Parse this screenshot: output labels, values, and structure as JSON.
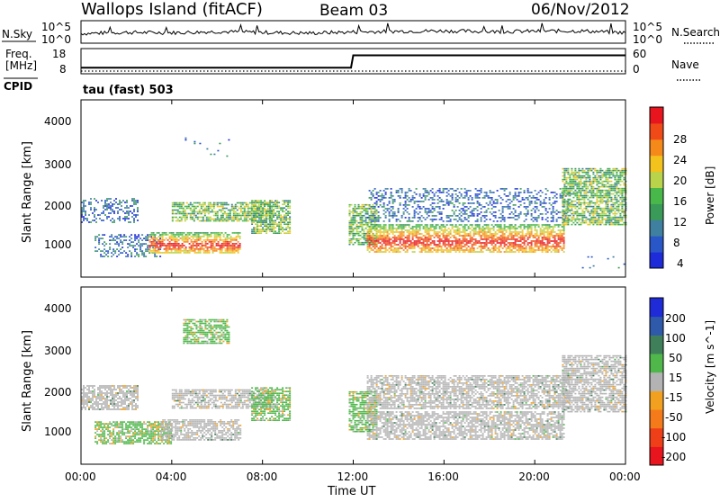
{
  "header": {
    "station": "Wallops Island (fitACF)",
    "beam": "Beam 03",
    "date": "06/Nov/2012"
  },
  "noise_panel": {
    "left_label": "N.Sky",
    "right_label": "N.Search",
    "left_ticks": [
      "10^5",
      "10^0"
    ],
    "right_ticks": [
      "10^5",
      "10^0"
    ]
  },
  "freq_panel": {
    "left_label_line1": "Freq.",
    "left_label_line2": "[MHz]",
    "right_label": "Nave",
    "left_ticks": [
      "18",
      "8"
    ],
    "right_ticks": [
      "60",
      "0"
    ],
    "cpid_label": "CPID",
    "cpid_text": "tau (fast) 503"
  },
  "chart_data": [
    {
      "type": "line",
      "title": "N.Sky",
      "description_series": [
        {
          "name": "N.Sky",
          "x": [
            0,
            2,
            4,
            6,
            8,
            10,
            12,
            14,
            16,
            18,
            20,
            22,
            24
          ],
          "values": [
            2.3,
            2.6,
            2.5,
            2.8,
            2.6,
            2.4,
            2.7,
            2.9,
            3.0,
            2.8,
            2.9,
            3.0,
            2.5
          ]
        }
      ]
    },
    {
      "type": "line",
      "title": "Freq.",
      "x": [
        0,
        11.9,
        12.0,
        24
      ],
      "series": [
        {
          "name": "Freq.",
          "values": [
            10.2,
            10.2,
            15.5,
            15.5
          ]
        },
        {
          "name": "Nave",
          "values": [
            2,
            2,
            2,
            2
          ]
        }
      ],
      "ylim": [
        8,
        18
      ]
    },
    {
      "type": "heatmap",
      "xlabel": "",
      "ylabel": "Slant Range [km]",
      "yticks": [
        "1000",
        "2000",
        "3000",
        "4000"
      ],
      "xlim": [
        0,
        24
      ],
      "ylim": [
        180,
        4600
      ],
      "colorbar": {
        "label": "Power [dB]",
        "ticks": [
          "4",
          "8",
          "12",
          "16",
          "20",
          "24",
          "28"
        ]
      },
      "bands": [
        {
          "t0": 0.0,
          "t1": 2.5,
          "r0": 1550,
          "r1": 2150,
          "level": "weak"
        },
        {
          "t0": 0.6,
          "t1": 3.5,
          "r0": 700,
          "r1": 1250,
          "level": "weak"
        },
        {
          "t0": 3.0,
          "t1": 7.0,
          "r0": 800,
          "r1": 1300,
          "level": "strong"
        },
        {
          "t0": 4.0,
          "t1": 8.5,
          "r0": 1600,
          "r1": 2050,
          "level": "medium"
        },
        {
          "t0": 7.5,
          "t1": 9.2,
          "r0": 1250,
          "r1": 2100,
          "level": "medium"
        },
        {
          "t0": 11.8,
          "t1": 13.0,
          "r0": 1000,
          "r1": 2000,
          "level": "medium"
        },
        {
          "t0": 12.6,
          "t1": 21.3,
          "r0": 800,
          "r1": 1500,
          "level": "strong"
        },
        {
          "t0": 12.6,
          "t1": 21.5,
          "r0": 1550,
          "r1": 2400,
          "level": "weak"
        },
        {
          "t0": 21.2,
          "t1": 24.0,
          "r0": 1500,
          "r1": 2900,
          "level": "medium"
        },
        {
          "t0": 4.5,
          "t1": 6.5,
          "r0": 3200,
          "r1": 3800,
          "level": "sparse"
        },
        {
          "t0": 22.0,
          "t1": 24.0,
          "r0": 300,
          "r1": 700,
          "level": "sparse"
        }
      ]
    },
    {
      "type": "heatmap",
      "xlabel": "Time UT",
      "ylabel": "Slant Range [km]",
      "yticks": [
        "1000",
        "2000",
        "3000",
        "4000"
      ],
      "xticks": [
        "00:00",
        "04:00",
        "08:00",
        "12:00",
        "16:00",
        "20:00",
        "00:00"
      ],
      "xlim": [
        0,
        24
      ],
      "ylim": [
        180,
        4600
      ],
      "colorbar": {
        "label": "Velocity [m s^-1]",
        "ticks": [
          "200",
          "100",
          "50",
          "15",
          "-15",
          "-50",
          "-100",
          "-200"
        ]
      },
      "bands": [
        {
          "t0": 0.0,
          "t1": 2.5,
          "r0": 1550,
          "r1": 2150,
          "level": "ground"
        },
        {
          "t0": 0.6,
          "t1": 4.0,
          "r0": 700,
          "r1": 1250,
          "level": "positive"
        },
        {
          "t0": 3.5,
          "t1": 7.0,
          "r0": 800,
          "r1": 1300,
          "level": "ground"
        },
        {
          "t0": 4.0,
          "t1": 8.5,
          "r0": 1600,
          "r1": 2050,
          "level": "ground"
        },
        {
          "t0": 7.5,
          "t1": 9.2,
          "r0": 1250,
          "r1": 2100,
          "level": "positive"
        },
        {
          "t0": 11.8,
          "t1": 13.0,
          "r0": 1000,
          "r1": 2000,
          "level": "positive"
        },
        {
          "t0": 12.6,
          "t1": 21.3,
          "r0": 800,
          "r1": 1500,
          "level": "ground"
        },
        {
          "t0": 12.6,
          "t1": 21.5,
          "r0": 1550,
          "r1": 2400,
          "level": "ground"
        },
        {
          "t0": 21.2,
          "t1": 24.0,
          "r0": 1500,
          "r1": 2900,
          "level": "ground"
        },
        {
          "t0": 4.5,
          "t1": 6.5,
          "r0": 3200,
          "r1": 3800,
          "level": "positive"
        }
      ]
    }
  ],
  "colors": {
    "power_scale": [
      "#1d2bd8",
      "#2a57c8",
      "#3f7fa0",
      "#3a9a58",
      "#49b84a",
      "#b9d34a",
      "#f3c21d",
      "#f58a1a",
      "#ef4a17",
      "#e8141e"
    ],
    "velocity_scale": [
      "#1f2bd6",
      "#2f5aa9",
      "#3f7f5a",
      "#50b84b",
      "#b3b3b3",
      "#f2a01f",
      "#f57b1a",
      "#ee3f18",
      "#e8141e"
    ]
  }
}
